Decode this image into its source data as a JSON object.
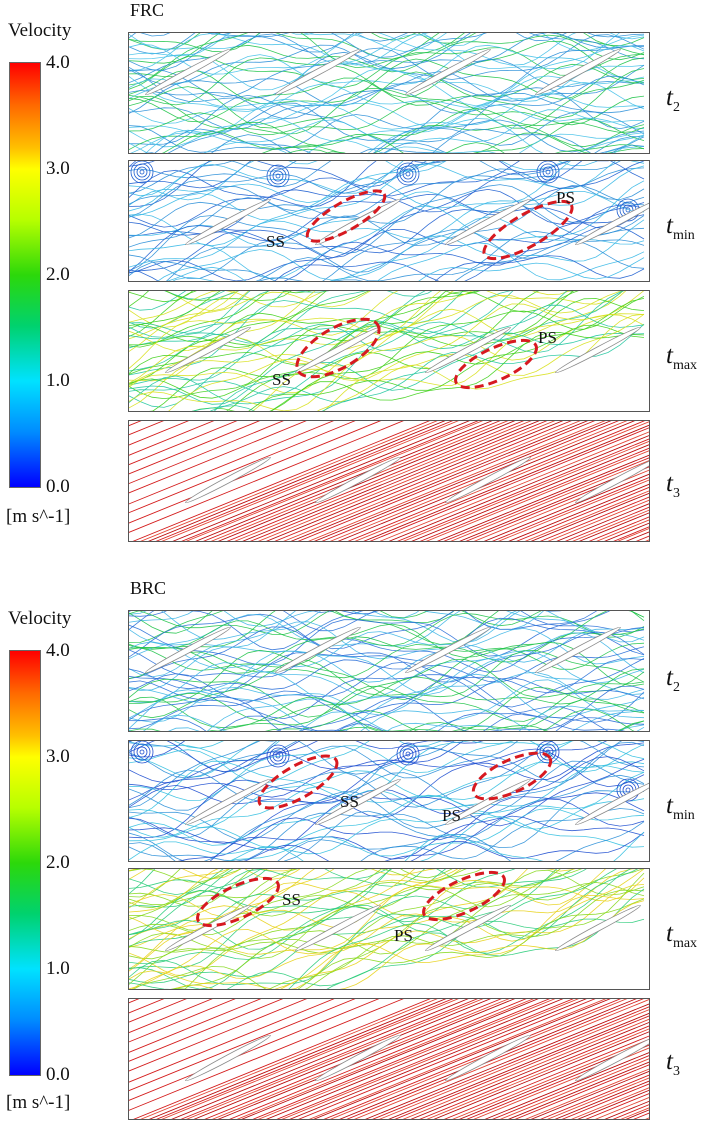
{
  "colorbar": {
    "title": "Velocity",
    "ticks": [
      "4.0",
      "3.0",
      "2.0",
      "1.0",
      "0.0"
    ],
    "unit": "[m s^-1]",
    "range": [
      0,
      4.0
    ],
    "colors": [
      "#0000ff",
      "#00e2ff",
      "#2cd80a",
      "#ffff00",
      "#ff0000"
    ]
  },
  "sections": [
    {
      "title": "FRC",
      "panels": [
        {
          "time": "t",
          "sub": "2",
          "color_a": "#2b8fd8",
          "color_b": "#46c1e8",
          "accent": "#21c44a",
          "annotations": []
        },
        {
          "time": "t",
          "sub": "min",
          "color_a": "#1f5fd0",
          "color_b": "#38b8e6",
          "accent": "#2b8fd8",
          "annotations": [
            {
              "label": "SS"
            },
            {
              "label": "PS"
            }
          ]
        },
        {
          "time": "t",
          "sub": "max",
          "color_a": "#d8e01c",
          "color_b": "#22c6a0",
          "accent": "#3fd01a",
          "annotations": [
            {
              "label": "SS"
            },
            {
              "label": "PS"
            }
          ]
        },
        {
          "time": "t",
          "sub": "3",
          "color_a": "#d21010",
          "color_b": "#e23a2a",
          "accent": "#b80000",
          "annotations": []
        }
      ]
    },
    {
      "title": "BRC",
      "panels": [
        {
          "time": "t",
          "sub": "2",
          "color_a": "#2a6fd8",
          "color_b": "#3fb6e6",
          "accent": "#21c44a",
          "annotations": []
        },
        {
          "time": "t",
          "sub": "min",
          "color_a": "#1f4fd0",
          "color_b": "#35c0e0",
          "accent": "#2b8fd8",
          "annotations": [
            {
              "label": "SS"
            },
            {
              "label": "PS"
            }
          ]
        },
        {
          "time": "t",
          "sub": "max",
          "color_a": "#e8d21a",
          "color_b": "#86d81c",
          "accent": "#2acc7a",
          "annotations": [
            {
              "label": "SS"
            },
            {
              "label": "PS"
            }
          ]
        },
        {
          "time": "t",
          "sub": "3",
          "color_a": "#d21010",
          "color_b": "#e23a2a",
          "accent": "#b80000",
          "annotations": []
        }
      ]
    }
  ]
}
